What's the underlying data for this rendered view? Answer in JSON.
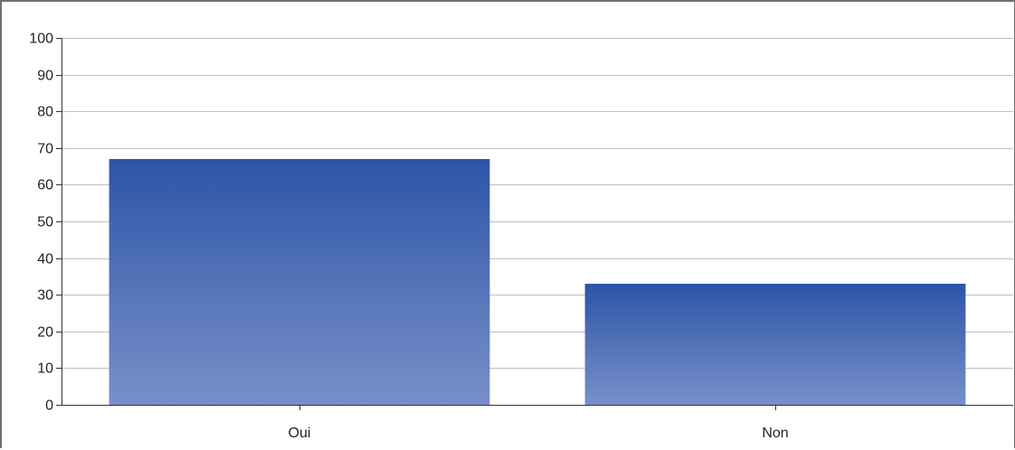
{
  "chart_data": {
    "type": "bar",
    "categories": [
      "Oui",
      "Non"
    ],
    "values": [
      67,
      33
    ],
    "title": "",
    "xlabel": "",
    "ylabel": "",
    "ylim": [
      0,
      100
    ],
    "yticks": [
      0,
      10,
      20,
      30,
      40,
      50,
      60,
      70,
      80,
      90,
      100
    ],
    "grid": true,
    "legend": "none",
    "colors": {
      "bar_top": "#2e54a8",
      "bar_bottom": "#7890c8",
      "gridline": "#c0c0c0",
      "axis": "#333333",
      "text": "#222222"
    }
  }
}
